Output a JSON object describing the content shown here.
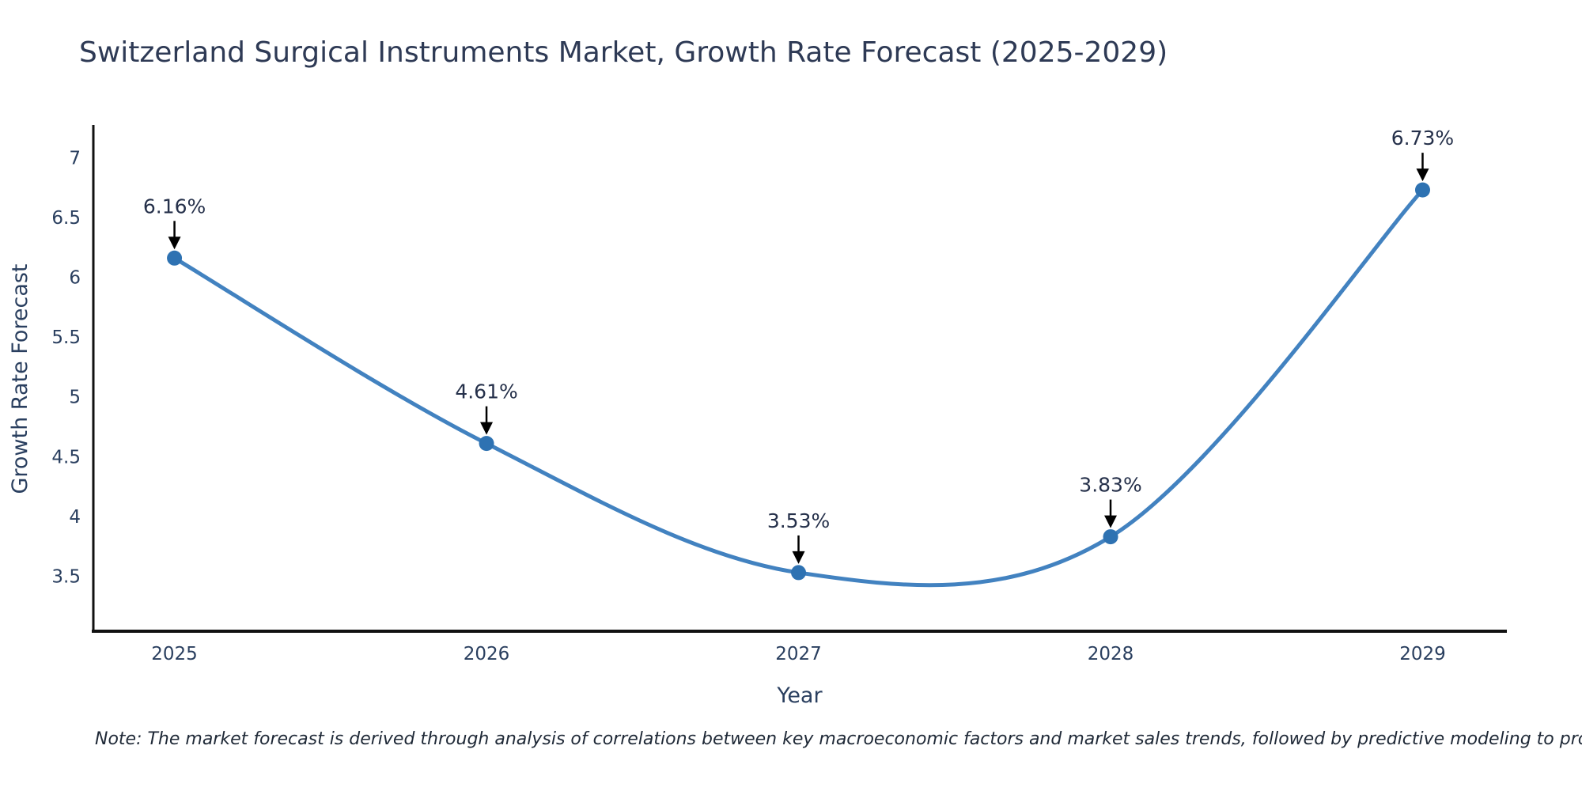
{
  "chart_data": {
    "type": "line",
    "title": "Switzerland Surgical Instruments Market, Growth Rate Forecast (2025-2029)",
    "xlabel": "Year",
    "ylabel": "Growth Rate Forecast",
    "x": [
      2025,
      2026,
      2027,
      2028,
      2029
    ],
    "series": [
      {
        "name": "Growth Rate Forecast",
        "values": [
          6.16,
          4.61,
          3.53,
          3.83,
          6.73
        ]
      }
    ],
    "point_labels": [
      "6.16%",
      "4.61%",
      "3.53%",
      "3.83%",
      "6.73%"
    ],
    "xticks": {
      "values": [
        2025,
        2026,
        2027,
        2028,
        2029
      ],
      "labels": [
        "2025",
        "2026",
        "2027",
        "2028",
        "2029"
      ]
    },
    "yticks": {
      "values": [
        3.5,
        4,
        4.5,
        5,
        5.5,
        6,
        6.5,
        7
      ],
      "labels": [
        "3.5",
        "4",
        "4.5",
        "5",
        "5.5",
        "6",
        "6.5",
        "7"
      ]
    },
    "xlim": [
      2024.74,
      2029.27
    ],
    "ylim": [
      3.04,
      7.26
    ],
    "grid": false,
    "legend": "none",
    "line_shape": "spline",
    "annotations_have_arrows": true,
    "colors": {
      "line": "#4282c0",
      "marker": "#2e72b2",
      "arrow": "#000000",
      "axis_line": "#111111",
      "text": "#2a3f5f"
    }
  },
  "note": "Note: The market forecast is derived through analysis of correlations between key macroeconomic factors and market sales trends, followed by predictive modeling to project future sales"
}
